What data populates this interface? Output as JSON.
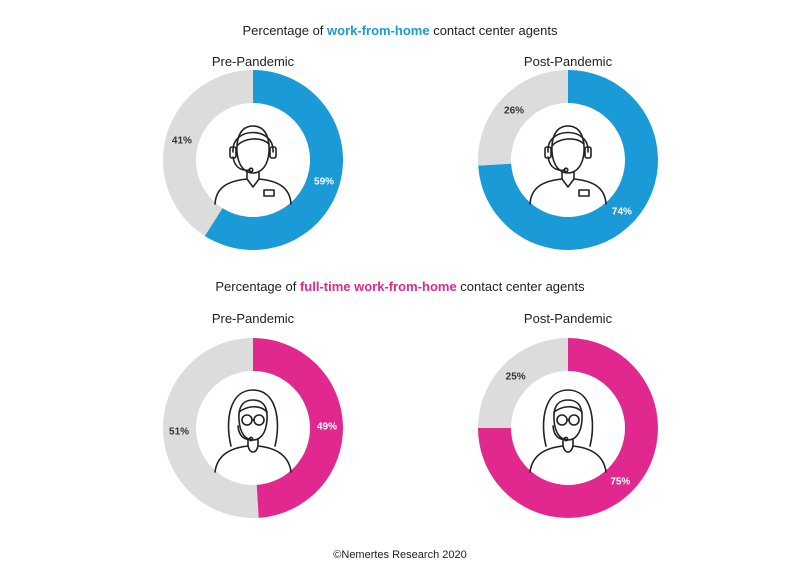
{
  "headings": [
    {
      "before": "Percentage of ",
      "highlight": "work-from-home",
      "after": " contact center agents",
      "color": "#1a9ad6"
    },
    {
      "before": "Percentage of ",
      "highlight": "full-time work-from-home",
      "after": " contact center agents",
      "color": "#e0288f"
    }
  ],
  "footer": "©Nemertes Research 2020",
  "colors": {
    "blue": "#1a9ad6",
    "pink": "#e0288f",
    "gray": "#dcdcdc"
  },
  "chart_data": [
    {
      "type": "pie",
      "title": "Pre-Pandemic",
      "group": "work-from-home",
      "icon": "male-agent-icon",
      "slices": [
        {
          "label": "59%",
          "value": 59,
          "color": "#1a9ad6"
        },
        {
          "label": "41%",
          "value": 41,
          "color": "#dcdcdc"
        }
      ]
    },
    {
      "type": "pie",
      "title": "Post-Pandemic",
      "group": "work-from-home",
      "icon": "male-agent-icon",
      "slices": [
        {
          "label": "74%",
          "value": 74,
          "color": "#1a9ad6"
        },
        {
          "label": "26%",
          "value": 26,
          "color": "#dcdcdc"
        }
      ]
    },
    {
      "type": "pie",
      "title": "Pre-Pandemic",
      "group": "full-time work-from-home",
      "icon": "female-agent-icon",
      "slices": [
        {
          "label": "49%",
          "value": 49,
          "color": "#e0288f"
        },
        {
          "label": "51%",
          "value": 51,
          "color": "#dcdcdc"
        }
      ]
    },
    {
      "type": "pie",
      "title": "Post-Pandemic",
      "group": "full-time work-from-home",
      "icon": "female-agent-icon",
      "slices": [
        {
          "label": "75%",
          "value": 75,
          "color": "#e0288f"
        },
        {
          "label": "25%",
          "value": 25,
          "color": "#dcdcdc"
        }
      ]
    }
  ]
}
